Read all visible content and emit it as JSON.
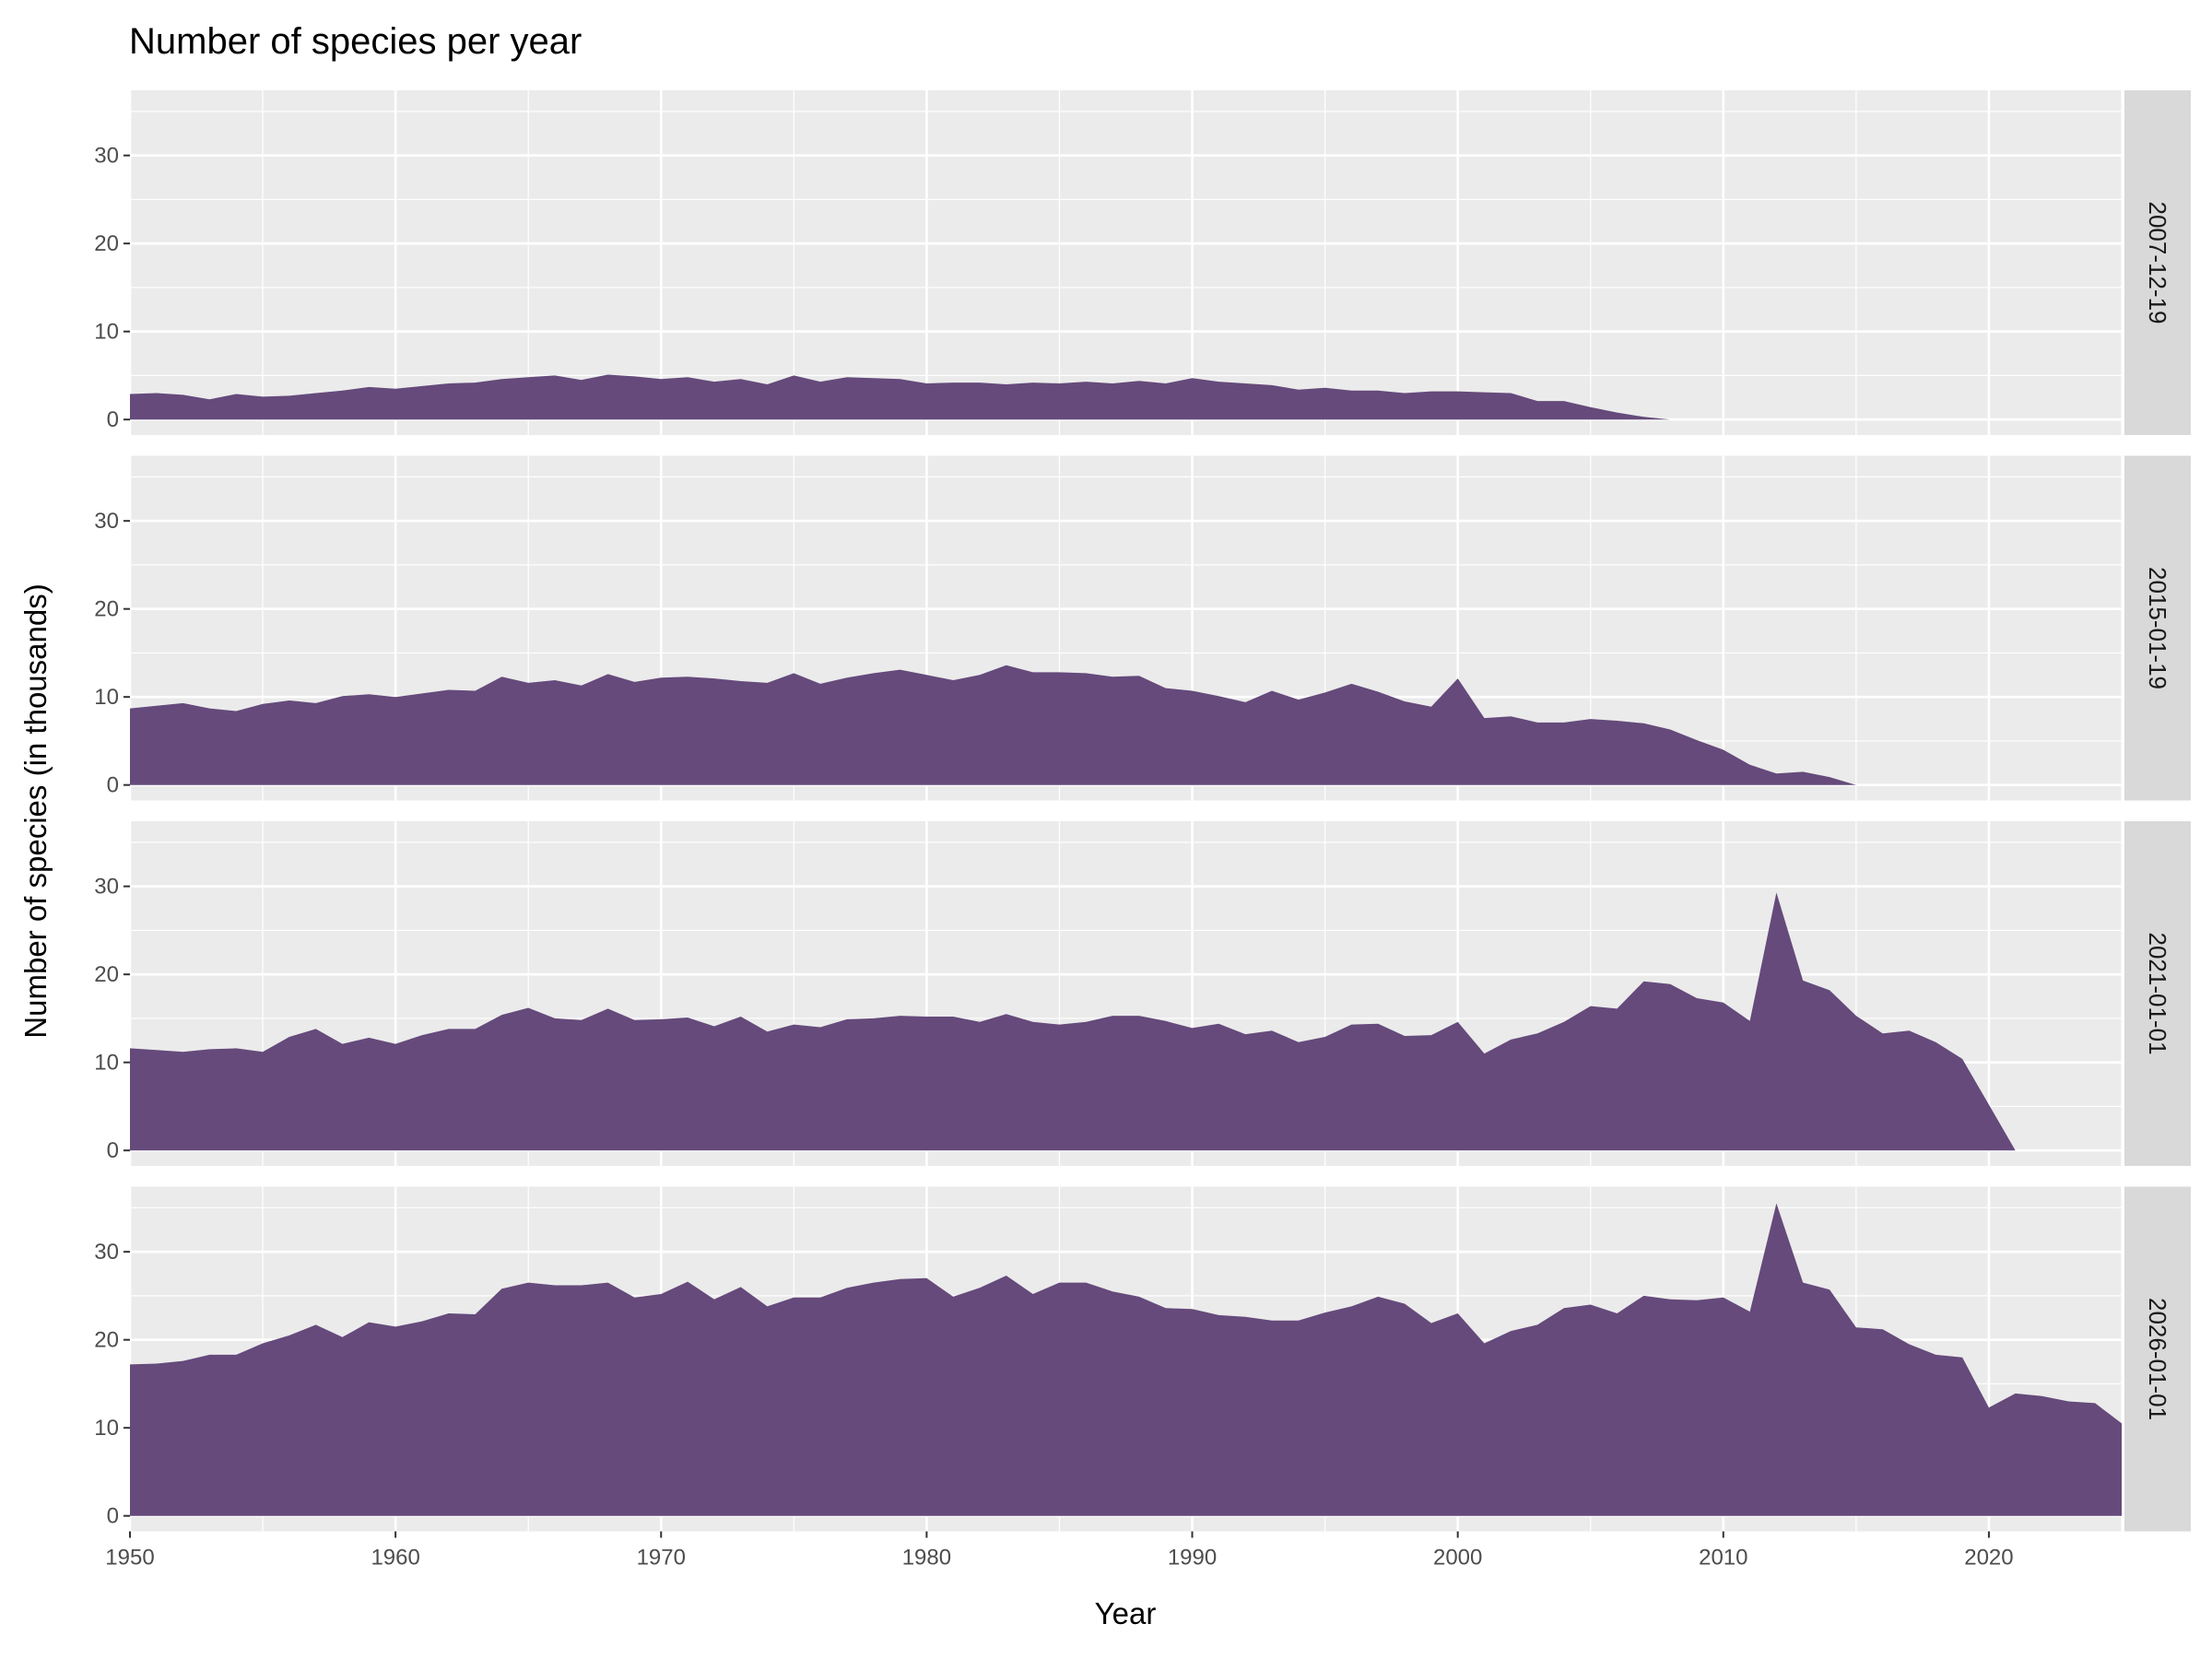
{
  "chart_data": {
    "type": "area",
    "title": "Number of species per year",
    "xlabel": "Year",
    "ylabel": "Number of species (in thousands)",
    "xlim": [
      1950,
      2025
    ],
    "ylim": [
      0,
      37
    ],
    "x_ticks": [
      1950,
      1960,
      1970,
      1980,
      1990,
      2000,
      2010,
      2020
    ],
    "y_ticks": [
      0,
      10,
      20,
      30
    ],
    "grid": true,
    "fill_color": "#654A7B",
    "facets": [
      {
        "label": "2007-12-19",
        "start_year": 1950,
        "values": [
          2.9,
          3.0,
          2.8,
          2.3,
          2.9,
          2.6,
          2.7,
          3.0,
          3.3,
          3.7,
          3.5,
          3.8,
          4.1,
          4.2,
          4.6,
          4.8,
          5.0,
          4.5,
          5.1,
          4.9,
          4.6,
          4.8,
          4.3,
          4.6,
          4.0,
          5.0,
          4.3,
          4.8,
          4.7,
          4.6,
          4.1,
          4.2,
          4.2,
          4.0,
          4.2,
          4.1,
          4.3,
          4.1,
          4.4,
          4.1,
          4.7,
          4.3,
          4.1,
          3.9,
          3.4,
          3.6,
          3.3,
          3.3,
          3.0,
          3.2,
          3.2,
          3.1,
          3.0,
          2.1,
          2.1,
          1.4,
          0.8,
          0.3,
          0.0
        ]
      },
      {
        "label": "2015-01-19",
        "start_year": 1950,
        "values": [
          8.7,
          9.0,
          9.3,
          8.7,
          8.4,
          9.2,
          9.6,
          9.3,
          10.1,
          10.3,
          10.0,
          10.4,
          10.8,
          10.7,
          12.3,
          11.6,
          11.9,
          11.3,
          12.6,
          11.7,
          12.2,
          12.3,
          12.1,
          11.8,
          11.6,
          12.7,
          11.5,
          12.2,
          12.7,
          13.1,
          12.5,
          11.9,
          12.5,
          13.6,
          12.8,
          12.8,
          12.7,
          12.3,
          12.4,
          11.0,
          10.7,
          10.1,
          9.4,
          10.7,
          9.7,
          10.5,
          11.5,
          10.6,
          9.5,
          8.9,
          12.1,
          7.6,
          7.8,
          7.1,
          7.1,
          7.5,
          7.3,
          7.0,
          6.3,
          5.1,
          4.0,
          2.3,
          1.3,
          1.5,
          0.9,
          0.0
        ]
      },
      {
        "label": "2021-01-01",
        "start_year": 1950,
        "values": [
          11.6,
          11.4,
          11.2,
          11.5,
          11.6,
          11.2,
          12.9,
          13.8,
          12.1,
          12.8,
          12.1,
          13.1,
          13.8,
          13.8,
          15.4,
          16.2,
          15.0,
          14.8,
          16.1,
          14.8,
          14.9,
          15.1,
          14.1,
          15.2,
          13.5,
          14.3,
          14.0,
          14.9,
          15.0,
          15.3,
          15.2,
          15.2,
          14.6,
          15.5,
          14.6,
          14.3,
          14.6,
          15.3,
          15.3,
          14.7,
          13.9,
          14.4,
          13.2,
          13.6,
          12.3,
          12.9,
          14.3,
          14.4,
          13.0,
          13.1,
          14.6,
          11.0,
          12.6,
          13.3,
          14.6,
          16.4,
          16.1,
          19.2,
          18.9,
          17.3,
          16.8,
          14.7,
          29.3,
          19.3,
          18.2,
          15.3,
          13.3,
          13.6,
          12.3,
          10.4,
          5.2,
          0.0
        ]
      },
      {
        "label": "2026-01-01",
        "start_year": 1950,
        "values": [
          17.2,
          17.3,
          17.6,
          18.3,
          18.3,
          19.6,
          20.5,
          21.7,
          20.3,
          22.0,
          21.5,
          22.1,
          23.0,
          22.9,
          25.8,
          26.5,
          26.2,
          26.2,
          26.5,
          24.8,
          25.2,
          26.6,
          24.6,
          26.0,
          23.8,
          24.8,
          24.8,
          25.9,
          26.5,
          26.9,
          27.0,
          24.9,
          25.9,
          27.3,
          25.2,
          26.5,
          26.5,
          25.5,
          24.9,
          23.6,
          23.5,
          22.8,
          22.6,
          22.2,
          22.2,
          23.1,
          23.8,
          24.9,
          24.1,
          21.9,
          23.0,
          19.6,
          21.0,
          21.7,
          23.6,
          24.0,
          23.0,
          25.0,
          24.6,
          24.5,
          24.8,
          23.2,
          35.5,
          26.5,
          25.7,
          21.4,
          21.2,
          19.5,
          18.3,
          18.0,
          12.3,
          13.9,
          13.6,
          13.0,
          12.8,
          10.5
        ]
      }
    ]
  }
}
